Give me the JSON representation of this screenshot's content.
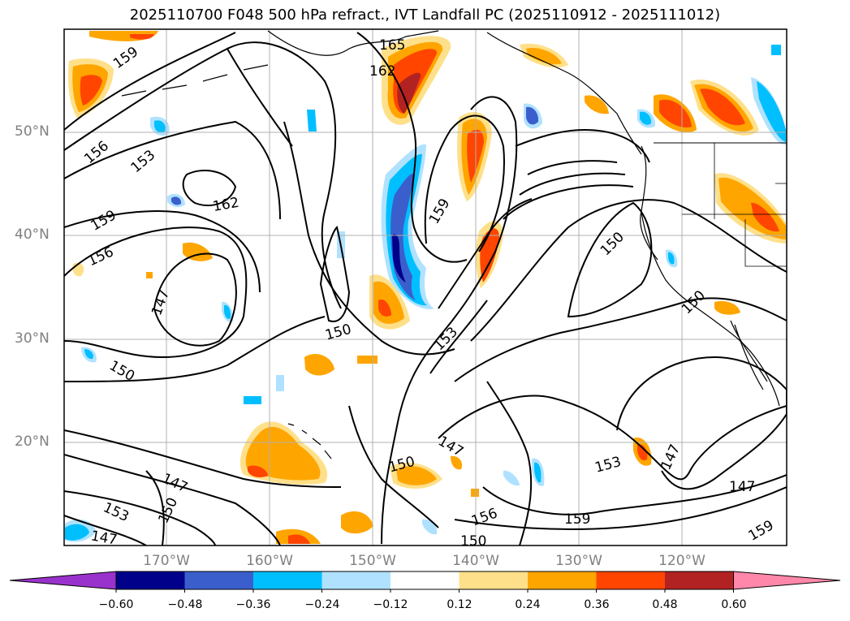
{
  "title": "2025110700 F048 500 hPa refract., IVT Landfall PC (2025110912 - 2025111012)",
  "lat_labels": [
    "50°N",
    "40°N",
    "30°N",
    "20°N"
  ],
  "lon_labels": [
    "170°W",
    "160°W",
    "150°W",
    "140°W",
    "130°W",
    "120°W"
  ],
  "contour_labels": [
    "165",
    "162",
    "159",
    "156",
    "153",
    "162",
    "159",
    "156",
    "147",
    "150",
    "150",
    "159",
    "150",
    "153",
    "150",
    "147",
    "147",
    "150",
    "153",
    "150",
    "147",
    "153",
    "147",
    "156",
    "159",
    "159",
    "147",
    "150",
    "159"
  ],
  "colorbar": {
    "tick_labels": [
      "−0.60",
      "−0.48",
      "−0.36",
      "−0.24",
      "−0.12",
      "0.12",
      "0.24",
      "0.36",
      "0.48",
      "0.60"
    ],
    "colors": [
      "#9932cc",
      "#00008b",
      "#3a5fcd",
      "#00bfff",
      "#b0e2ff",
      "#ffffff",
      "#ffe08a",
      "#ffa500",
      "#ff4500",
      "#b22222",
      "#ff88aa"
    ]
  },
  "palette": {
    "land_outline": "#000000",
    "grid": "#b0b0b0",
    "contour": "#000000"
  }
}
